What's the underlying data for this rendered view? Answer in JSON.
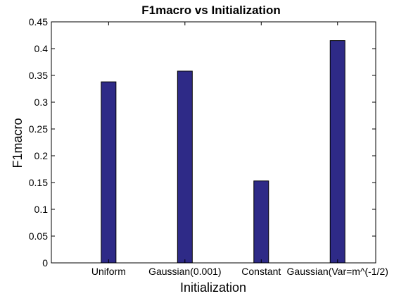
{
  "chart_data": {
    "type": "bar",
    "title": "F1macro vs Initialization",
    "xlabel": "Initialization",
    "ylabel": "F1macro",
    "categories": [
      "Uniform",
      "Gaussian(0.001)",
      "Constant",
      "Gaussian(Var=m^(-1/2)"
    ],
    "values": [
      0.338,
      0.358,
      0.153,
      0.415
    ],
    "ylim": [
      0,
      0.45
    ],
    "yticks": [
      "0",
      "0.05",
      "0.1",
      "0.15",
      "0.2",
      "0.25",
      "0.3",
      "0.35",
      "0.4",
      "0.45"
    ],
    "grid": false,
    "bar_color": "#2e2a87"
  }
}
